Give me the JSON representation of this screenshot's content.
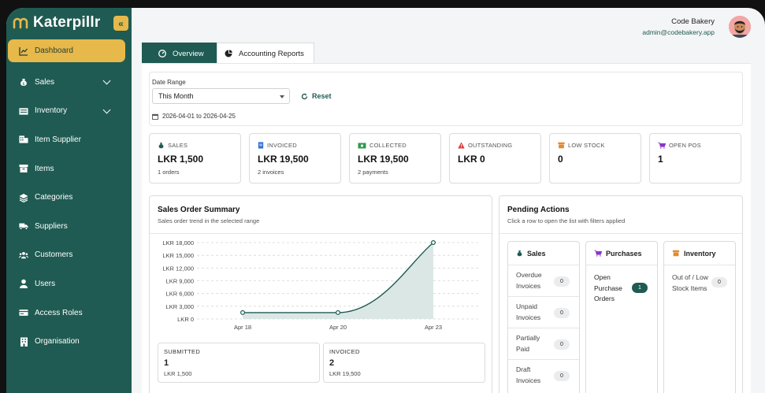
{
  "brand": {
    "name": "Katerpillr",
    "collapse_icon": "«"
  },
  "nav": [
    {
      "label": "Dashboard",
      "icon": "chart-line-icon",
      "active": true
    },
    {
      "label": "Sales",
      "icon": "money-bag-icon",
      "expandable": true
    },
    {
      "label": "Inventory",
      "icon": "inventory-icon",
      "expandable": true
    },
    {
      "label": "Item Supplier",
      "icon": "item-supplier-icon"
    },
    {
      "label": "Items",
      "icon": "box-icon"
    },
    {
      "label": "Categories",
      "icon": "layers-icon"
    },
    {
      "label": "Suppliers",
      "icon": "truck-icon"
    },
    {
      "label": "Customers",
      "icon": "users-icon"
    },
    {
      "label": "Users",
      "icon": "user-icon"
    },
    {
      "label": "Access Roles",
      "icon": "id-card-icon"
    },
    {
      "label": "Organisation",
      "icon": "building-icon"
    }
  ],
  "user": {
    "name": "Code Bakery",
    "email": "admin@codebakery.app"
  },
  "tabs": [
    {
      "label": "Overview",
      "icon": "gauge-icon",
      "active": true
    },
    {
      "label": "Accounting Reports",
      "icon": "pie-chart-icon",
      "active": false
    }
  ],
  "filter": {
    "label": "Date Range",
    "selected": "This Month",
    "reset": "Reset",
    "range_text": "2026-04-01 to 2026-04-25"
  },
  "stats": [
    {
      "label": "SALES",
      "value": "LKR 1,500",
      "sub": "1 orders",
      "icon": "money-bag-icon",
      "color": "#1f5b52"
    },
    {
      "label": "INVOICED",
      "value": "LKR 19,500",
      "sub": "2 invoices",
      "icon": "invoice-icon",
      "color": "#2f6fd6"
    },
    {
      "label": "COLLECTED",
      "value": "LKR 19,500",
      "sub": "2 payments",
      "icon": "cash-icon",
      "color": "#2e9a4a"
    },
    {
      "label": "OUTSTANDING",
      "value": "LKR 0",
      "sub": "",
      "icon": "warning-icon",
      "color": "#d93b3b"
    },
    {
      "label": "LOW STOCK",
      "value": "0",
      "sub": "",
      "icon": "box-icon",
      "color": "#e58a2b"
    },
    {
      "label": "OPEN POS",
      "value": "1",
      "sub": "",
      "icon": "cart-icon",
      "color": "#8a35c9"
    }
  ],
  "summary": {
    "title": "Sales Order Summary",
    "subtitle": "Sales order trend in the selected range",
    "mini": [
      {
        "label": "SUBMITTED",
        "value": "1",
        "sub": "LKR 1,500"
      },
      {
        "label": "INVOICED",
        "value": "2",
        "sub": "LKR 19,500"
      }
    ]
  },
  "chart_data": {
    "type": "area",
    "x": [
      "Apr 18",
      "Apr 20",
      "Apr 23"
    ],
    "values": [
      1500,
      1500,
      18000
    ],
    "ylim": [
      0,
      18000
    ],
    "yticks": [
      "LKR 0",
      "LKR 3,000",
      "LKR 6,000",
      "LKR 9,000",
      "LKR 12,000",
      "LKR 15,000",
      "LKR 18,000"
    ],
    "grid": true,
    "line_color": "#1f5b52",
    "fill_color": "#dbe7e5"
  },
  "pending": {
    "title": "Pending Actions",
    "subtitle": "Click a row to open the list with filters applied",
    "columns": [
      {
        "title": "Sales",
        "icon": "money-bag-icon",
        "color": "#1f5b52",
        "rows": [
          {
            "label": "Overdue Invoices",
            "count": "0"
          },
          {
            "label": "Unpaid Invoices",
            "count": "0"
          },
          {
            "label": "Partially Paid",
            "count": "0"
          },
          {
            "label": "Draft Invoices",
            "count": "0"
          }
        ]
      },
      {
        "title": "Purchases",
        "icon": "cart-icon",
        "color": "#8a35c9",
        "rows": [
          {
            "label": "Open Purchase Orders",
            "count": "1"
          }
        ]
      },
      {
        "title": "Inventory",
        "icon": "box-icon",
        "color": "#e58a2b",
        "rows": [
          {
            "label": "Out of / Low Stock Items",
            "count": "0"
          }
        ]
      }
    ]
  }
}
